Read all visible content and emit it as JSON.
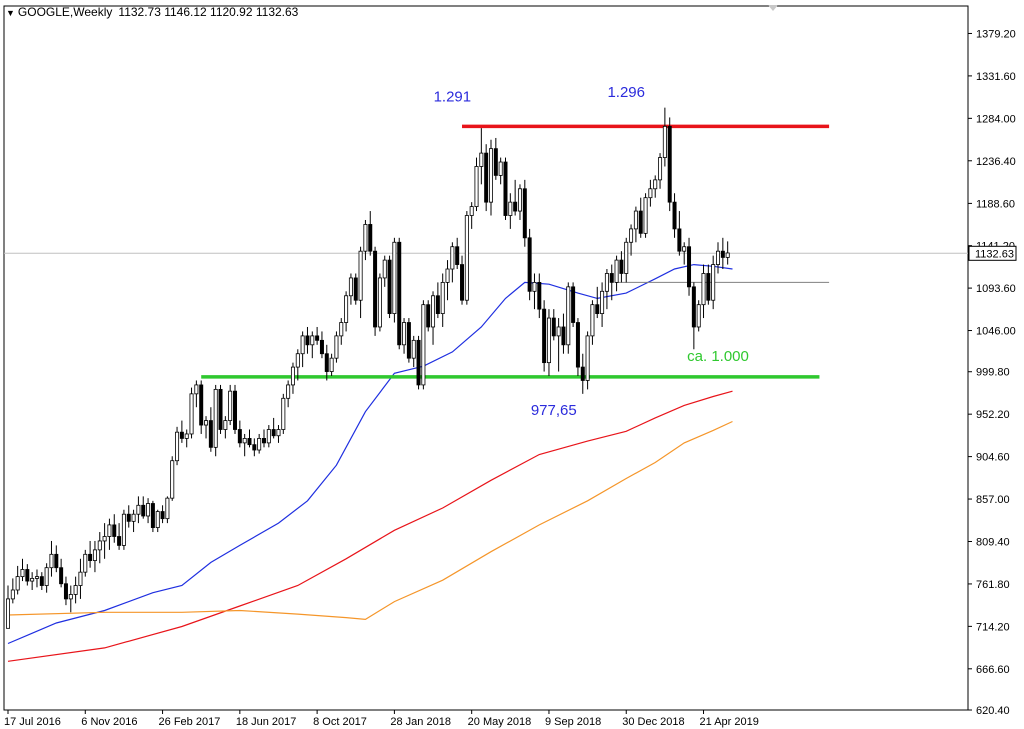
{
  "header": {
    "symbol": "GOOGLE,Weekly",
    "ohlc": "1132.73 1146.12 1120.92 1132.63",
    "menu_icon": "triangle-down-icon"
  },
  "colors": {
    "background": "#ffffff",
    "candle": "#000000",
    "ma_blue": "#1f2fe0",
    "ma_red": "#e8141a",
    "ma_orange": "#f5962a",
    "resistance": "#e8141a",
    "support": "#2fc82f",
    "annotation_blue": "#2b2bdc",
    "annotation_green": "#2fc82f",
    "grid_line": "#c0c0c0"
  },
  "chart_data": {
    "type": "line",
    "title": "GOOGLE,Weekly",
    "ylim": [
      620.4,
      1410
    ],
    "y_ticks": [
      "1379.20",
      "1331.60",
      "1284.00",
      "1236.40",
      "1188.60",
      "1141.20",
      "1093.60",
      "1046.00",
      "999.80",
      "952.20",
      "904.60",
      "857.00",
      "809.40",
      "761.80",
      "714.20",
      "666.60",
      "620.40"
    ],
    "x_ticks": [
      {
        "label": "17 Jul 2016",
        "week": 0
      },
      {
        "label": "6 Nov 2016",
        "week": 16
      },
      {
        "label": "26 Feb 2017",
        "week": 32
      },
      {
        "label": "18 Jun 2017",
        "week": 48
      },
      {
        "label": "8 Oct 2017",
        "week": 64
      },
      {
        "label": "28 Jan 2018",
        "week": 80
      },
      {
        "label": "20 May 2018",
        "week": 96
      },
      {
        "label": "9 Sep 2018",
        "week": 112
      },
      {
        "label": "30 Dec 2018",
        "week": 128
      },
      {
        "label": "21 Apr 2019",
        "week": 144
      }
    ],
    "current_price": "1132.63",
    "series": [
      {
        "kind": "ma_blue",
        "points": [
          [
            0,
            695
          ],
          [
            10,
            718
          ],
          [
            20,
            732
          ],
          [
            30,
            752
          ],
          [
            36,
            760
          ],
          [
            42,
            786
          ],
          [
            48,
            805
          ],
          [
            56,
            830
          ],
          [
            62,
            855
          ],
          [
            68,
            895
          ],
          [
            74,
            955
          ],
          [
            80,
            998
          ],
          [
            86,
            1006
          ],
          [
            92,
            1022
          ],
          [
            98,
            1050
          ],
          [
            103,
            1082
          ],
          [
            107,
            1100
          ],
          [
            112,
            1098
          ],
          [
            118,
            1088
          ],
          [
            122,
            1082
          ],
          [
            128,
            1088
          ],
          [
            134,
            1104
          ],
          [
            138,
            1115
          ],
          [
            142,
            1120
          ],
          [
            146,
            1118
          ],
          [
            150,
            1115
          ]
        ]
      },
      {
        "kind": "ma_red",
        "points": [
          [
            0,
            675
          ],
          [
            20,
            690
          ],
          [
            36,
            714
          ],
          [
            48,
            737
          ],
          [
            60,
            760
          ],
          [
            70,
            790
          ],
          [
            80,
            822
          ],
          [
            90,
            847
          ],
          [
            100,
            878
          ],
          [
            110,
            907
          ],
          [
            120,
            922
          ],
          [
            128,
            933
          ],
          [
            134,
            948
          ],
          [
            140,
            962
          ],
          [
            146,
            972
          ],
          [
            150,
            978
          ]
        ]
      },
      {
        "kind": "ma_orange",
        "points": [
          [
            0,
            727
          ],
          [
            20,
            730
          ],
          [
            36,
            730
          ],
          [
            48,
            732
          ],
          [
            60,
            728
          ],
          [
            70,
            724
          ],
          [
            74,
            722
          ],
          [
            80,
            742
          ],
          [
            90,
            766
          ],
          [
            100,
            798
          ],
          [
            110,
            828
          ],
          [
            120,
            855
          ],
          [
            128,
            880
          ],
          [
            134,
            898
          ],
          [
            140,
            920
          ],
          [
            146,
            934
          ],
          [
            150,
            944
          ]
        ]
      }
    ],
    "candles": [
      [
        712,
        725,
        760,
        745
      ],
      [
        745,
        740,
        768,
        755
      ],
      [
        755,
        750,
        782,
        770
      ],
      [
        770,
        765,
        790,
        778
      ],
      [
        778,
        760,
        784,
        765
      ],
      [
        765,
        755,
        775,
        768
      ],
      [
        768,
        758,
        778,
        770
      ],
      [
        770,
        755,
        775,
        760
      ],
      [
        760,
        752,
        785,
        780
      ],
      [
        780,
        770,
        810,
        795
      ],
      [
        795,
        775,
        805,
        780
      ],
      [
        780,
        758,
        790,
        762
      ],
      [
        762,
        738,
        770,
        745
      ],
      [
        745,
        730,
        760,
        750
      ],
      [
        750,
        740,
        770,
        760
      ],
      [
        760,
        745,
        790,
        775
      ],
      [
        775,
        770,
        800,
        795
      ],
      [
        795,
        780,
        810,
        788
      ],
      [
        788,
        775,
        810,
        800
      ],
      [
        800,
        785,
        820,
        810
      ],
      [
        810,
        790,
        830,
        815
      ],
      [
        815,
        800,
        835,
        828
      ],
      [
        828,
        808,
        840,
        815
      ],
      [
        815,
        800,
        830,
        805
      ],
      [
        805,
        800,
        845,
        840
      ],
      [
        840,
        825,
        850,
        832
      ],
      [
        832,
        820,
        845,
        840
      ],
      [
        840,
        830,
        860,
        850
      ],
      [
        850,
        835,
        860,
        838
      ],
      [
        838,
        830,
        858,
        852
      ],
      [
        852,
        820,
        855,
        825
      ],
      [
        825,
        820,
        845,
        843
      ],
      [
        843,
        830,
        850,
        835
      ],
      [
        835,
        830,
        860,
        858
      ],
      [
        858,
        855,
        905,
        900
      ],
      [
        900,
        895,
        938,
        932
      ],
      [
        932,
        920,
        945,
        925
      ],
      [
        925,
        915,
        935,
        930
      ],
      [
        930,
        925,
        982,
        975
      ],
      [
        975,
        960,
        990,
        985
      ],
      [
        985,
        930,
        990,
        940
      ],
      [
        940,
        925,
        950,
        945
      ],
      [
        945,
        910,
        960,
        915
      ],
      [
        915,
        905,
        985,
        980
      ],
      [
        980,
        930,
        985,
        935
      ],
      [
        935,
        925,
        950,
        945
      ],
      [
        945,
        940,
        985,
        978
      ],
      [
        978,
        930,
        985,
        935
      ],
      [
        935,
        915,
        945,
        920
      ],
      [
        920,
        905,
        930,
        925
      ],
      [
        925,
        915,
        935,
        918
      ],
      [
        918,
        905,
        925,
        912
      ],
      [
        912,
        908,
        930,
        925
      ],
      [
        925,
        915,
        935,
        920
      ],
      [
        920,
        915,
        940,
        935
      ],
      [
        935,
        925,
        948,
        928
      ],
      [
        928,
        920,
        940,
        935
      ],
      [
        935,
        930,
        975,
        970
      ],
      [
        970,
        960,
        990,
        985
      ],
      [
        985,
        975,
        1010,
        1005
      ],
      [
        1005,
        990,
        1025,
        1020
      ],
      [
        1020,
        1005,
        1045,
        1040
      ],
      [
        1040,
        1020,
        1050,
        1030
      ],
      [
        1030,
        1015,
        1045,
        1040
      ],
      [
        1040,
        1030,
        1050,
        1035
      ],
      [
        1035,
        1015,
        1045,
        1020
      ],
      [
        1020,
        990,
        1030,
        1000
      ],
      [
        1000,
        995,
        1020,
        1015
      ],
      [
        1015,
        1010,
        1045,
        1040
      ],
      [
        1040,
        1030,
        1060,
        1055
      ],
      [
        1055,
        1045,
        1090,
        1085
      ],
      [
        1085,
        1075,
        1110,
        1105
      ],
      [
        1105,
        1075,
        1110,
        1080
      ],
      [
        1080,
        1060,
        1140,
        1135
      ],
      [
        1135,
        1125,
        1170,
        1165
      ],
      [
        1165,
        1130,
        1180,
        1135
      ],
      [
        1135,
        1040,
        1140,
        1050
      ],
      [
        1050,
        1045,
        1110,
        1105
      ],
      [
        1105,
        1095,
        1130,
        1125
      ],
      [
        1125,
        1060,
        1130,
        1065
      ],
      [
        1065,
        1055,
        1150,
        1145
      ],
      [
        1145,
        1025,
        1150,
        1030
      ],
      [
        1030,
        1020,
        1060,
        1055
      ],
      [
        1055,
        1010,
        1060,
        1015
      ],
      [
        1015,
        1005,
        1040,
        1035
      ],
      [
        1035,
        980,
        1040,
        985
      ],
      [
        985,
        980,
        1080,
        1075
      ],
      [
        1075,
        1045,
        1080,
        1050
      ],
      [
        1050,
        1030,
        1090,
        1085
      ],
      [
        1085,
        1060,
        1100,
        1065
      ],
      [
        1065,
        1050,
        1110,
        1100
      ],
      [
        1100,
        1080,
        1125,
        1115
      ],
      [
        1115,
        1100,
        1145,
        1140
      ],
      [
        1140,
        1115,
        1150,
        1120
      ],
      [
        1120,
        1075,
        1130,
        1080
      ],
      [
        1080,
        1075,
        1180,
        1175
      ],
      [
        1175,
        1160,
        1190,
        1185
      ],
      [
        1185,
        1180,
        1240,
        1230
      ],
      [
        1230,
        1210,
        1273,
        1245
      ],
      [
        1245,
        1180,
        1255,
        1190
      ],
      [
        1190,
        1175,
        1260,
        1250
      ],
      [
        1250,
        1215,
        1262,
        1220
      ],
      [
        1220,
        1210,
        1240,
        1235
      ],
      [
        1235,
        1170,
        1240,
        1175
      ],
      [
        1175,
        1160,
        1200,
        1190
      ],
      [
        1190,
        1175,
        1215,
        1180
      ],
      [
        1180,
        1170,
        1210,
        1205
      ],
      [
        1205,
        1140,
        1215,
        1150
      ],
      [
        1150,
        1080,
        1160,
        1090
      ],
      [
        1090,
        1070,
        1110,
        1100
      ],
      [
        1100,
        1060,
        1110,
        1070
      ],
      [
        1070,
        1000,
        1080,
        1010
      ],
      [
        1010,
        995,
        1070,
        1060
      ],
      [
        1060,
        1035,
        1070,
        1040
      ],
      [
        1040,
        1000,
        1060,
        1050
      ],
      [
        1050,
        1020,
        1065,
        1030
      ],
      [
        1030,
        1020,
        1100,
        1095
      ],
      [
        1095,
        1050,
        1100,
        1055
      ],
      [
        1055,
        995,
        1060,
        1005
      ],
      [
        1005,
        975,
        1020,
        990
      ],
      [
        990,
        980,
        1045,
        1040
      ],
      [
        1040,
        1030,
        1080,
        1075
      ],
      [
        1075,
        1060,
        1095,
        1065
      ],
      [
        1065,
        1050,
        1100,
        1090
      ],
      [
        1090,
        1070,
        1115,
        1110
      ],
      [
        1110,
        1080,
        1120,
        1100
      ],
      [
        1100,
        1090,
        1130,
        1125
      ],
      [
        1125,
        1100,
        1135,
        1110
      ],
      [
        1110,
        1100,
        1150,
        1145
      ],
      [
        1145,
        1130,
        1165,
        1160
      ],
      [
        1160,
        1145,
        1185,
        1180
      ],
      [
        1180,
        1150,
        1195,
        1155
      ],
      [
        1155,
        1150,
        1200,
        1195
      ],
      [
        1195,
        1185,
        1215,
        1205
      ],
      [
        1205,
        1195,
        1220,
        1215
      ],
      [
        1215,
        1205,
        1245,
        1240
      ],
      [
        1240,
        1230,
        1296,
        1275
      ],
      [
        1275,
        1180,
        1285,
        1190
      ],
      [
        1190,
        1150,
        1200,
        1160
      ],
      [
        1160,
        1130,
        1180,
        1135
      ],
      [
        1135,
        1120,
        1145,
        1140
      ],
      [
        1140,
        1085,
        1150,
        1095
      ],
      [
        1095,
        1025,
        1100,
        1050
      ],
      [
        1050,
        1045,
        1080,
        1075
      ],
      [
        1075,
        1060,
        1120,
        1110
      ],
      [
        1110,
        1075,
        1120,
        1080
      ],
      [
        1080,
        1070,
        1130,
        1120
      ],
      [
        1120,
        1110,
        1145,
        1135
      ],
      [
        1135,
        1115,
        1150,
        1128
      ],
      [
        1128,
        1120,
        1146,
        1133
      ]
    ],
    "horizontal_lines": [
      {
        "kind": "resistance",
        "price": 1275,
        "from_week": 94,
        "to_week": 170
      },
      {
        "kind": "support",
        "price": 994,
        "from_week": 40,
        "to_week": 168
      },
      {
        "kind": "reference",
        "price": 1100,
        "from_week": 126,
        "to_week": 170
      }
    ],
    "annotations": [
      {
        "kind": "blue",
        "text": "1.291",
        "week": 92,
        "price": 1303
      },
      {
        "kind": "blue",
        "text": "1.296",
        "week": 128,
        "price": 1308
      },
      {
        "kind": "blue",
        "text": "977,65",
        "week": 113,
        "price": 951
      },
      {
        "kind": "green",
        "text": "ca. 1.000",
        "week": 147,
        "price": 1012
      }
    ]
  }
}
